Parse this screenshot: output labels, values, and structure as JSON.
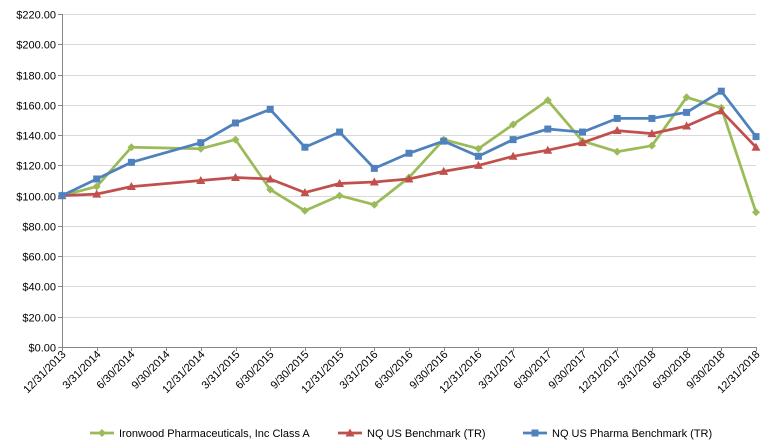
{
  "chart_data": {
    "type": "line",
    "categories": [
      "12/31/2013",
      "3/31/2014",
      "6/30/2014",
      "9/30/2014",
      "12/31/2014",
      "3/31/2015",
      "6/30/2015",
      "9/30/2015",
      "12/31/2015",
      "3/31/2016",
      "6/30/2016",
      "9/30/2016",
      "12/31/2016",
      "3/31/2017",
      "6/30/2017",
      "9/30/2017",
      "12/31/2017",
      "3/31/2018",
      "6/30/2018",
      "9/30/2018",
      "12/31/2018"
    ],
    "ylim": [
      0,
      220
    ],
    "yticks": [
      0,
      20,
      40,
      60,
      80,
      100,
      120,
      140,
      160,
      180,
      200,
      220
    ],
    "y_tick_labels": [
      "$0.00",
      "$20.00",
      "$40.00",
      "$60.00",
      "$80.00",
      "$100.00",
      "$120.00",
      "$140.00",
      "$160.00",
      "$180.00",
      "$200.00",
      "$220.00"
    ],
    "grid": "horizontal",
    "legend_position": "bottom",
    "series": [
      {
        "name": "Ironwood Pharmaceuticals, Inc Class A",
        "color": "#9bbb59",
        "marker": "diamond",
        "points": [
          [
            0,
            100
          ],
          [
            1,
            106
          ],
          [
            2,
            132
          ],
          [
            4,
            131
          ],
          [
            5,
            137
          ],
          [
            6,
            104
          ],
          [
            7,
            90
          ],
          [
            8,
            100
          ],
          [
            9,
            94
          ],
          [
            10,
            112
          ],
          [
            11,
            137
          ],
          [
            12,
            131
          ],
          [
            13,
            147
          ],
          [
            14,
            163
          ],
          [
            15,
            136
          ],
          [
            16,
            129
          ],
          [
            17,
            133
          ],
          [
            18,
            165
          ],
          [
            19,
            158
          ],
          [
            20,
            89
          ]
        ]
      },
      {
        "name": "NQ US Benchmark (TR)",
        "color": "#c0504d",
        "marker": "triangle",
        "points": [
          [
            0,
            100
          ],
          [
            1,
            101
          ],
          [
            2,
            106
          ],
          [
            4,
            110
          ],
          [
            5,
            112
          ],
          [
            6,
            111
          ],
          [
            7,
            102
          ],
          [
            8,
            108
          ],
          [
            9,
            109
          ],
          [
            10,
            111
          ],
          [
            11,
            116
          ],
          [
            12,
            120
          ],
          [
            13,
            126
          ],
          [
            14,
            130
          ],
          [
            15,
            135
          ],
          [
            16,
            143
          ],
          [
            17,
            141
          ],
          [
            18,
            146
          ],
          [
            19,
            156
          ],
          [
            20,
            132
          ]
        ]
      },
      {
        "name": "NQ US Pharma Benchmark (TR)",
        "color": "#4f81bd",
        "marker": "square",
        "points": [
          [
            0,
            100
          ],
          [
            1,
            111
          ],
          [
            2,
            122
          ],
          [
            4,
            135
          ],
          [
            5,
            148
          ],
          [
            6,
            157
          ],
          [
            7,
            132
          ],
          [
            8,
            142
          ],
          [
            9,
            118
          ],
          [
            10,
            128
          ],
          [
            11,
            136
          ],
          [
            12,
            126
          ],
          [
            13,
            137
          ],
          [
            14,
            144
          ],
          [
            15,
            142
          ],
          [
            16,
            151
          ],
          [
            17,
            151
          ],
          [
            18,
            155
          ],
          [
            19,
            169
          ],
          [
            20,
            139
          ]
        ]
      }
    ]
  }
}
